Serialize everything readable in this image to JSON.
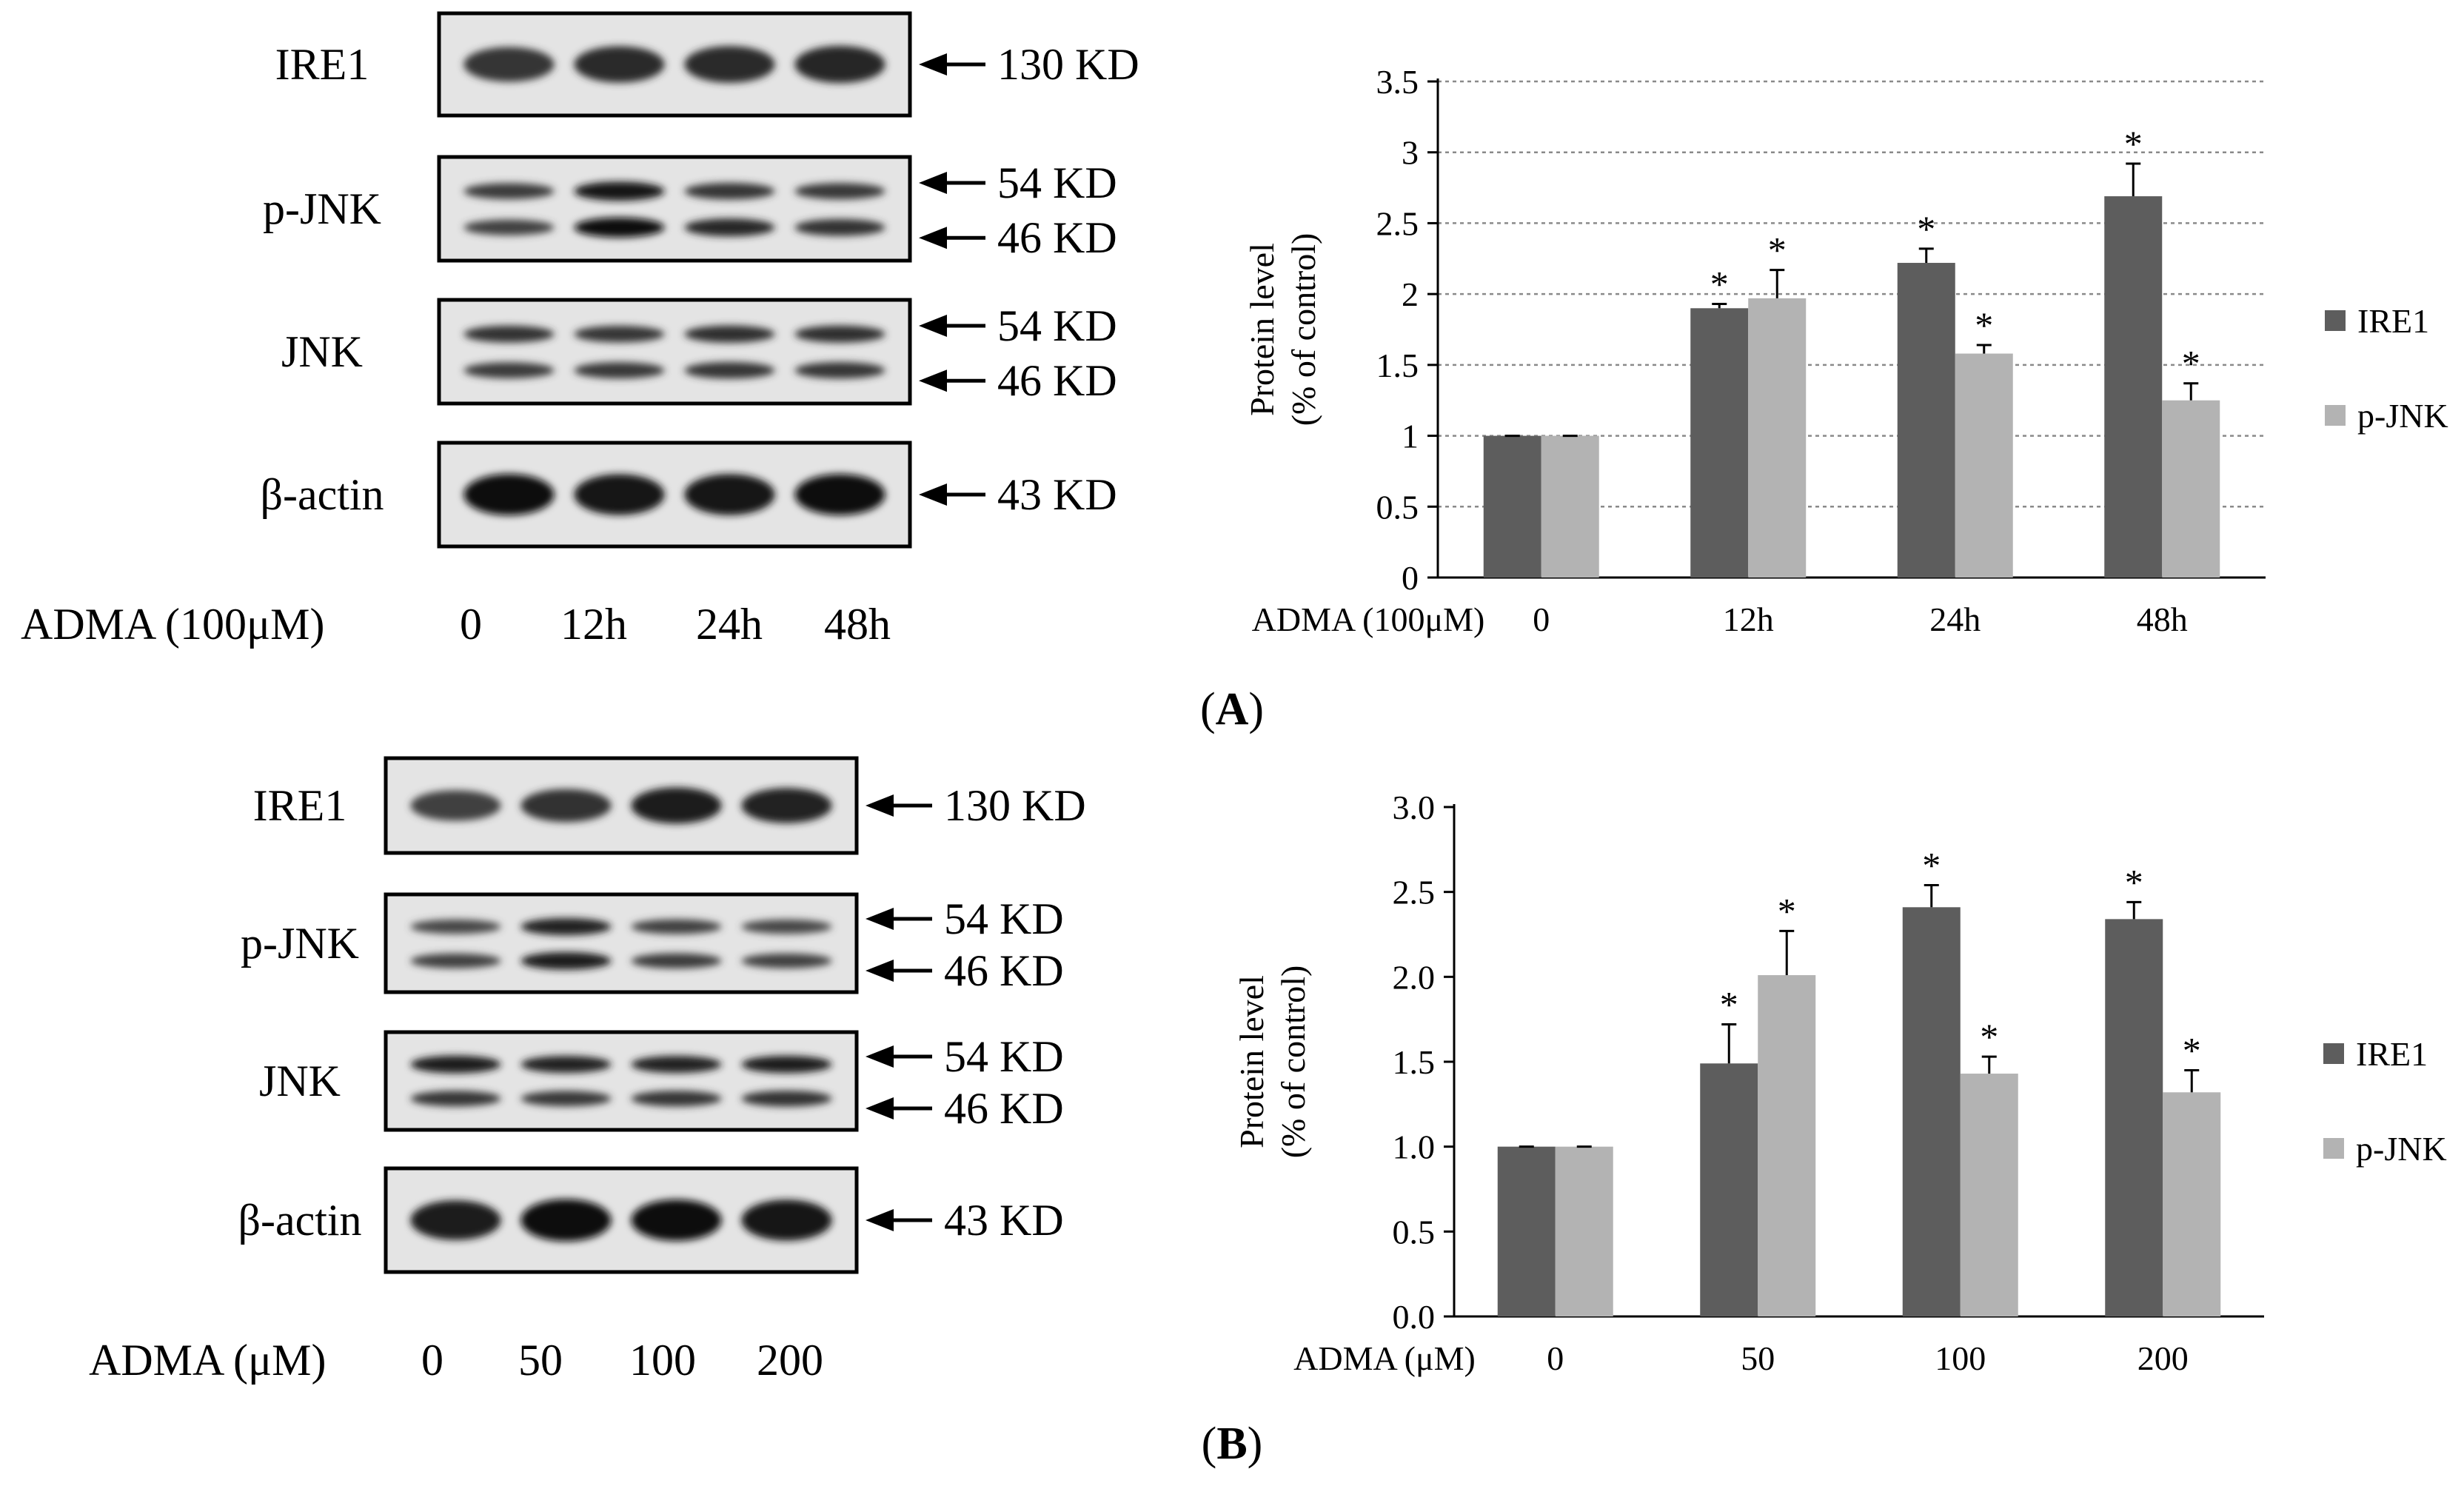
{
  "panels": [
    {
      "label": "A",
      "blot": {
        "rows": [
          {
            "name": "IRE1",
            "markers": [
              "130 KD"
            ],
            "bands": [
              0.6,
              0.7,
              0.72,
              0.74
            ],
            "lower_bands": null
          },
          {
            "name": "p-JNK",
            "markers": [
              "54 KD",
              "46 KD"
            ],
            "bands": [
              0.55,
              0.9,
              0.62,
              0.58
            ],
            "lower_bands": [
              0.5,
              1.0,
              0.75,
              0.65
            ]
          },
          {
            "name": "JNK",
            "markers": [
              "54 KD",
              "46 KD"
            ],
            "bands": [
              0.65,
              0.62,
              0.68,
              0.66
            ],
            "lower_bands": [
              0.55,
              0.58,
              0.62,
              0.6
            ]
          },
          {
            "name": "β-actin",
            "markers": [
              "43 KD"
            ],
            "bands": [
              0.95,
              0.92,
              0.93,
              0.94
            ],
            "lower_bands": null
          }
        ],
        "treatment_label": "ADMA (100μM)",
        "lanes": [
          "0",
          "12h",
          "24h",
          "48h"
        ]
      }
    },
    {
      "label": "B",
      "blot": {
        "rows": [
          {
            "name": "IRE1",
            "markers": [
              "130 KD"
            ],
            "bands": [
              0.5,
              0.65,
              0.85,
              0.78
            ],
            "lower_bands": null
          },
          {
            "name": "p-JNK",
            "markers": [
              "54 KD",
              "46 KD"
            ],
            "bands": [
              0.45,
              0.8,
              0.5,
              0.45
            ],
            "lower_bands": [
              0.5,
              0.85,
              0.55,
              0.5
            ]
          },
          {
            "name": "JNK",
            "markers": [
              "54 KD",
              "46 KD"
            ],
            "bands": [
              0.85,
              0.78,
              0.8,
              0.82
            ],
            "lower_bands": [
              0.6,
              0.58,
              0.62,
              0.64
            ]
          },
          {
            "name": "β-actin",
            "markers": [
              "43 KD"
            ],
            "bands": [
              0.85,
              1.0,
              0.95,
              0.92
            ],
            "lower_bands": null
          }
        ],
        "treatment_label": "ADMA (μM)",
        "lanes": [
          "0",
          "50",
          "100",
          "200"
        ]
      }
    }
  ],
  "chart_data": [
    {
      "type": "bar",
      "panel": "A",
      "title": "",
      "xlabel": "ADMA (100μM)",
      "ylabel": [
        "Protein level",
        "(% of control)"
      ],
      "categories": [
        "0",
        "12h",
        "24h",
        "48h"
      ],
      "ylim": [
        0,
        3.5
      ],
      "ytick_values": [
        0,
        0.5,
        1,
        1.5,
        2,
        2.5,
        3,
        3.5
      ],
      "ytick_labels": [
        "0",
        "0.5",
        "1",
        "1.5",
        "2",
        "2.5",
        "3",
        "3.5"
      ],
      "gridlines": true,
      "legend_position": "right",
      "significance_marker": "*",
      "series": [
        {
          "name": "IRE1",
          "color": "#5d5d5d",
          "values": [
            1.0,
            1.9,
            2.22,
            2.69
          ],
          "errors": [
            0,
            0.03,
            0.1,
            0.23
          ],
          "significant": [
            false,
            true,
            true,
            true
          ]
        },
        {
          "name": "p-JNK",
          "color": "#b3b3b3",
          "values": [
            1.0,
            1.97,
            1.58,
            1.25
          ],
          "errors": [
            0,
            0.2,
            0.06,
            0.12
          ],
          "significant": [
            false,
            true,
            true,
            true
          ]
        }
      ]
    },
    {
      "type": "bar",
      "panel": "B",
      "title": "",
      "xlabel": "ADMA (μM)",
      "ylabel": [
        "Protein level",
        "(% of control)"
      ],
      "categories": [
        "0",
        "50",
        "100",
        "200"
      ],
      "ylim": [
        0,
        3.0
      ],
      "ytick_values": [
        0,
        0.5,
        1,
        1.5,
        2,
        2.5,
        3
      ],
      "ytick_labels": [
        "0.0",
        "0.5",
        "1.0",
        "1.5",
        "2.0",
        "2.5",
        "3.0"
      ],
      "gridlines": false,
      "legend_position": "right",
      "significance_marker": "*",
      "series": [
        {
          "name": "IRE1",
          "color": "#5d5d5d",
          "values": [
            1.0,
            1.49,
            2.41,
            2.34
          ],
          "errors": [
            0,
            0.23,
            0.13,
            0.1
          ],
          "significant": [
            false,
            true,
            true,
            true
          ]
        },
        {
          "name": "p-JNK",
          "color": "#b3b3b3",
          "values": [
            1.0,
            2.01,
            1.43,
            1.32
          ],
          "errors": [
            0,
            0.26,
            0.1,
            0.13
          ],
          "significant": [
            false,
            true,
            true,
            true
          ]
        }
      ]
    }
  ]
}
